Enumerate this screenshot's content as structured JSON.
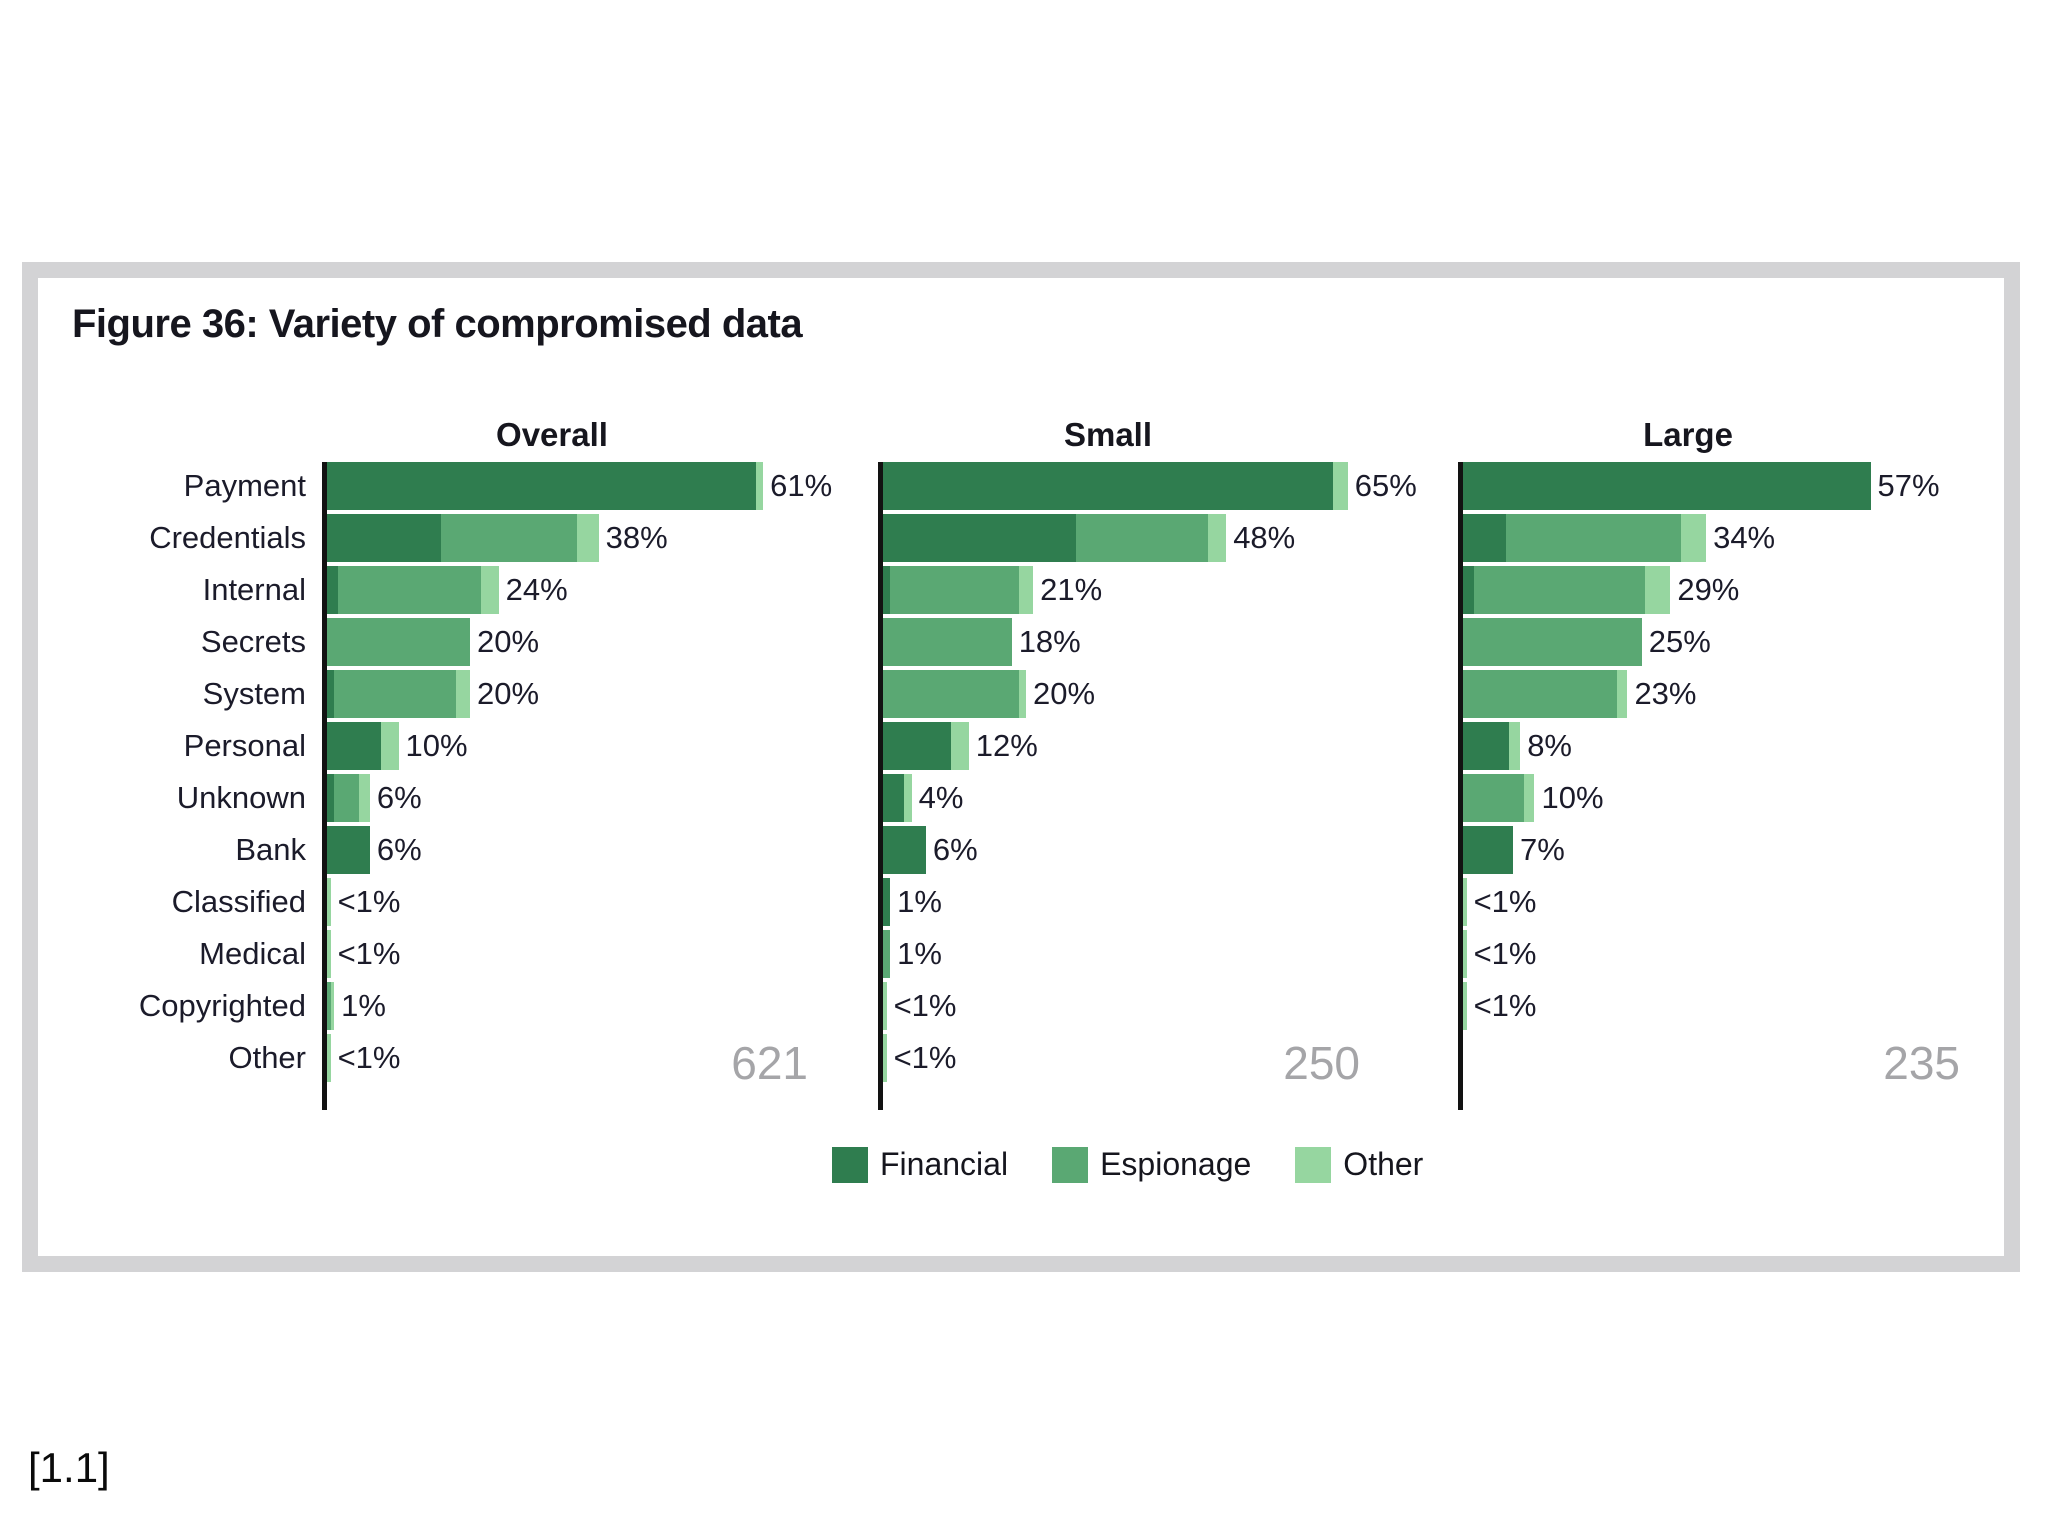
{
  "page": {
    "citation": "[1.1]"
  },
  "figure": {
    "title": "Figure 36: Variety of compromised data"
  },
  "chart_data": {
    "type": "bar",
    "orientation": "horizontal-stacked",
    "title": "Figure 36: Variety of compromised data",
    "xlim_percent": [
      0,
      70
    ],
    "grid": false,
    "legend_position": "bottom-center",
    "categories": [
      "Payment",
      "Credentials",
      "Internal",
      "Secrets",
      "System",
      "Personal",
      "Unknown",
      "Bank",
      "Classified",
      "Medical",
      "Copyrighted",
      "Other"
    ],
    "legend": [
      {
        "name": "Financial",
        "color": "#2f7d4f"
      },
      {
        "name": "Espionage",
        "color": "#5aa873"
      },
      {
        "name": "Other",
        "color": "#96d6a0"
      }
    ],
    "panels": [
      {
        "title": "Overall",
        "sample_size": "621",
        "rows": [
          {
            "label": "61%",
            "financial": 60,
            "espionage": 0,
            "other": 1
          },
          {
            "label": "38%",
            "financial": 16,
            "espionage": 19,
            "other": 3
          },
          {
            "label": "24%",
            "financial": 1.5,
            "espionage": 20,
            "other": 2.5
          },
          {
            "label": "20%",
            "financial": 0,
            "espionage": 20,
            "other": 0
          },
          {
            "label": "20%",
            "financial": 1,
            "espionage": 17,
            "other": 2
          },
          {
            "label": "10%",
            "financial": 7.5,
            "espionage": 0,
            "other": 2.5
          },
          {
            "label": "6%",
            "financial": 1,
            "espionage": 3.5,
            "other": 1.5
          },
          {
            "label": "6%",
            "financial": 6,
            "espionage": 0,
            "other": 0
          },
          {
            "label": "<1%",
            "financial": 0,
            "espionage": 0,
            "other": 0.5
          },
          {
            "label": "<1%",
            "financial": 0,
            "espionage": 0,
            "other": 0.5
          },
          {
            "label": "1%",
            "financial": 0,
            "espionage": 0.5,
            "other": 0.5
          },
          {
            "label": "<1%",
            "financial": 0,
            "espionage": 0,
            "other": 0.5
          }
        ]
      },
      {
        "title": "Small",
        "sample_size": "250",
        "rows": [
          {
            "label": "65%",
            "financial": 63,
            "espionage": 0,
            "other": 2
          },
          {
            "label": "48%",
            "financial": 27,
            "espionage": 18.5,
            "other": 2.5
          },
          {
            "label": "21%",
            "financial": 1,
            "espionage": 18,
            "other": 2
          },
          {
            "label": "18%",
            "financial": 0,
            "espionage": 18,
            "other": 0
          },
          {
            "label": "20%",
            "financial": 0,
            "espionage": 19,
            "other": 1
          },
          {
            "label": "12%",
            "financial": 9.5,
            "espionage": 0,
            "other": 2.5
          },
          {
            "label": "4%",
            "financial": 3,
            "espionage": 0,
            "other": 1
          },
          {
            "label": "6%",
            "financial": 6,
            "espionage": 0,
            "other": 0
          },
          {
            "label": "1%",
            "financial": 1,
            "espionage": 0,
            "other": 0
          },
          {
            "label": "1%",
            "financial": 0,
            "espionage": 1,
            "other": 0
          },
          {
            "label": "<1%",
            "financial": 0,
            "espionage": 0,
            "other": 0.5
          },
          {
            "label": "<1%",
            "financial": 0,
            "espionage": 0,
            "other": 0.5
          }
        ]
      },
      {
        "title": "Large",
        "sample_size": "235",
        "rows": [
          {
            "label": "57%",
            "financial": 57,
            "espionage": 0,
            "other": 0
          },
          {
            "label": "34%",
            "financial": 6,
            "espionage": 24.5,
            "other": 3.5
          },
          {
            "label": "29%",
            "financial": 1.5,
            "espionage": 24,
            "other": 3.5
          },
          {
            "label": "25%",
            "financial": 0,
            "espionage": 25,
            "other": 0
          },
          {
            "label": "23%",
            "financial": 0,
            "espionage": 21.5,
            "other": 1.5
          },
          {
            "label": "8%",
            "financial": 6.5,
            "espionage": 0,
            "other": 1.5
          },
          {
            "label": "10%",
            "financial": 0,
            "espionage": 8.5,
            "other": 1.5
          },
          {
            "label": "7%",
            "financial": 7,
            "espionage": 0,
            "other": 0
          },
          {
            "label": "<1%",
            "financial": 0,
            "espionage": 0,
            "other": 0.5
          },
          {
            "label": "<1%",
            "financial": 0,
            "espionage": 0,
            "other": 0.5
          },
          {
            "label": "<1%",
            "financial": 0,
            "espionage": 0,
            "other": 0.5
          },
          {
            "label": "",
            "financial": 0,
            "espionage": 0,
            "other": 0
          }
        ]
      }
    ]
  }
}
